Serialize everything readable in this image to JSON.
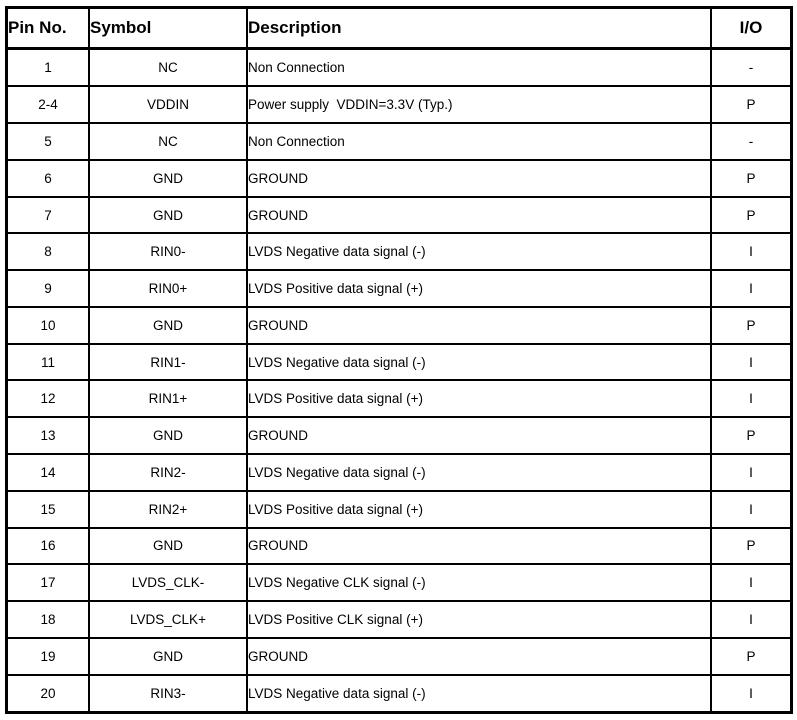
{
  "table": {
    "columns": [
      "Pin No.",
      "Symbol",
      "Description",
      "I/O"
    ],
    "rows": [
      {
        "pin": "1",
        "symbol": "NC",
        "description": "Non Connection",
        "io": "-"
      },
      {
        "pin": "2-4",
        "symbol": "VDDIN",
        "description": "Power supply  VDDIN=3.3V (Typ.)",
        "io": "P"
      },
      {
        "pin": "5",
        "symbol": "NC",
        "description": "Non Connection",
        "io": "-"
      },
      {
        "pin": "6",
        "symbol": "GND",
        "description": "GROUND",
        "io": "P"
      },
      {
        "pin": "7",
        "symbol": "GND",
        "description": "GROUND",
        "io": "P"
      },
      {
        "pin": "8",
        "symbol": "RIN0-",
        "description": "LVDS Negative data signal (-)",
        "io": "I"
      },
      {
        "pin": "9",
        "symbol": "RIN0+",
        "description": "LVDS Positive data signal (+)",
        "io": "I"
      },
      {
        "pin": "10",
        "symbol": "GND",
        "description": "GROUND",
        "io": "P"
      },
      {
        "pin": "11",
        "symbol": "RIN1-",
        "description": "LVDS Negative data signal (-)",
        "io": "I"
      },
      {
        "pin": "12",
        "symbol": "RIN1+",
        "description": "LVDS Positive data signal (+)",
        "io": "I"
      },
      {
        "pin": "13",
        "symbol": "GND",
        "description": "GROUND",
        "io": "P"
      },
      {
        "pin": "14",
        "symbol": "RIN2-",
        "description": "LVDS Negative data signal (-)",
        "io": "I"
      },
      {
        "pin": "15",
        "symbol": "RIN2+",
        "description": "LVDS Positive data signal (+)",
        "io": "I"
      },
      {
        "pin": "16",
        "symbol": "GND",
        "description": "GROUND",
        "io": "P"
      },
      {
        "pin": "17",
        "symbol": "LVDS_CLK-",
        "description": "LVDS Negative CLK signal (-)",
        "io": "I"
      },
      {
        "pin": "18",
        "symbol": "LVDS_CLK+",
        "description": "LVDS Positive CLK signal (+)",
        "io": "I"
      },
      {
        "pin": "19",
        "symbol": "GND",
        "description": "GROUND",
        "io": "P"
      },
      {
        "pin": "20",
        "symbol": "RIN3-",
        "description": "LVDS Negative data signal (-)",
        "io": "I"
      }
    ]
  },
  "colors": {
    "background": "#ffffff",
    "border": "#000000",
    "text": "#000000"
  }
}
